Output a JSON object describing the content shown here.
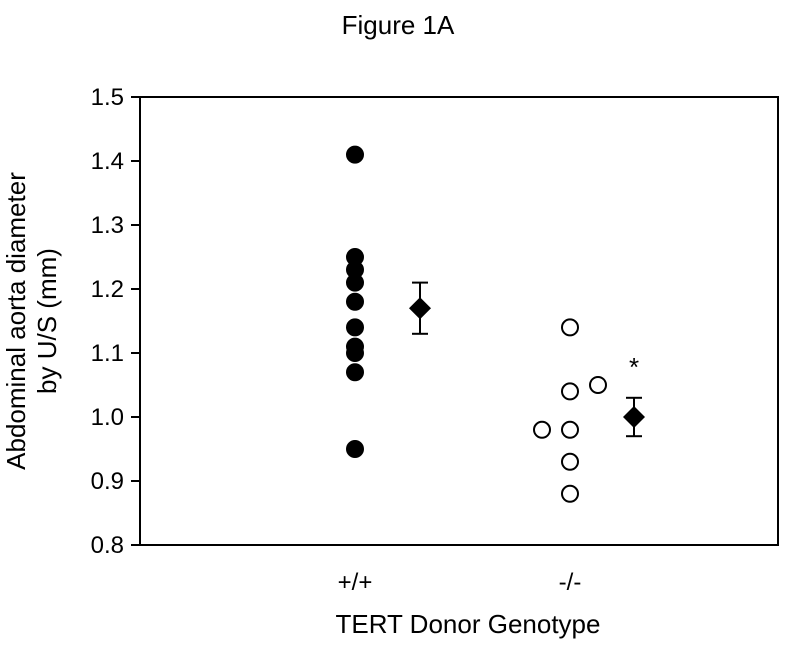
{
  "chart_data": {
    "type": "scatter",
    "title": "Figure 1A",
    "xlabel": "TERT Donor Genotype",
    "ylabel_lines": [
      "Abdominal aorta diameter",
      "by U/S (mm)"
    ],
    "ylim": [
      0.8,
      1.5
    ],
    "yticks": [
      0.8,
      0.9,
      1.0,
      1.1,
      1.2,
      1.3,
      1.4,
      1.5
    ],
    "ytick_labels": [
      "0.8",
      "0.9",
      "1.0",
      "1.1",
      "1.2",
      "1.3",
      "1.4",
      "1.5"
    ],
    "categories": [
      "+/+",
      "-/-"
    ],
    "grid": false,
    "series": [
      {
        "category": "+/+",
        "marker": "filled-circle",
        "points": [
          {
            "x": 0,
            "y": 1.41
          },
          {
            "x": 0,
            "y": 1.25
          },
          {
            "x": 0,
            "y": 1.23
          },
          {
            "x": 0,
            "y": 1.21
          },
          {
            "x": 0,
            "y": 1.18
          },
          {
            "x": 0,
            "y": 1.14
          },
          {
            "x": 0,
            "y": 1.11
          },
          {
            "x": 0,
            "y": 1.1
          },
          {
            "x": 0,
            "y": 1.07
          },
          {
            "x": 0,
            "y": 0.95
          }
        ]
      },
      {
        "category": "-/-",
        "marker": "open-circle",
        "points": [
          {
            "x": 0,
            "y": 1.14
          },
          {
            "x": -0.35,
            "y": 0.98
          },
          {
            "x": 0,
            "y": 1.04
          },
          {
            "x": 0.35,
            "y": 1.05
          },
          {
            "x": 0,
            "y": 0.98
          },
          {
            "x": 0,
            "y": 0.93
          },
          {
            "x": 0,
            "y": 0.88
          }
        ]
      }
    ],
    "means": [
      {
        "category": "+/+",
        "mean": 1.17,
        "error_low": 1.13,
        "error_high": 1.21,
        "marker": "filled-diamond"
      },
      {
        "category": "-/-",
        "mean": 1.0,
        "error_low": 0.97,
        "error_high": 1.03,
        "marker": "filled-diamond",
        "annotation": "*"
      }
    ]
  }
}
